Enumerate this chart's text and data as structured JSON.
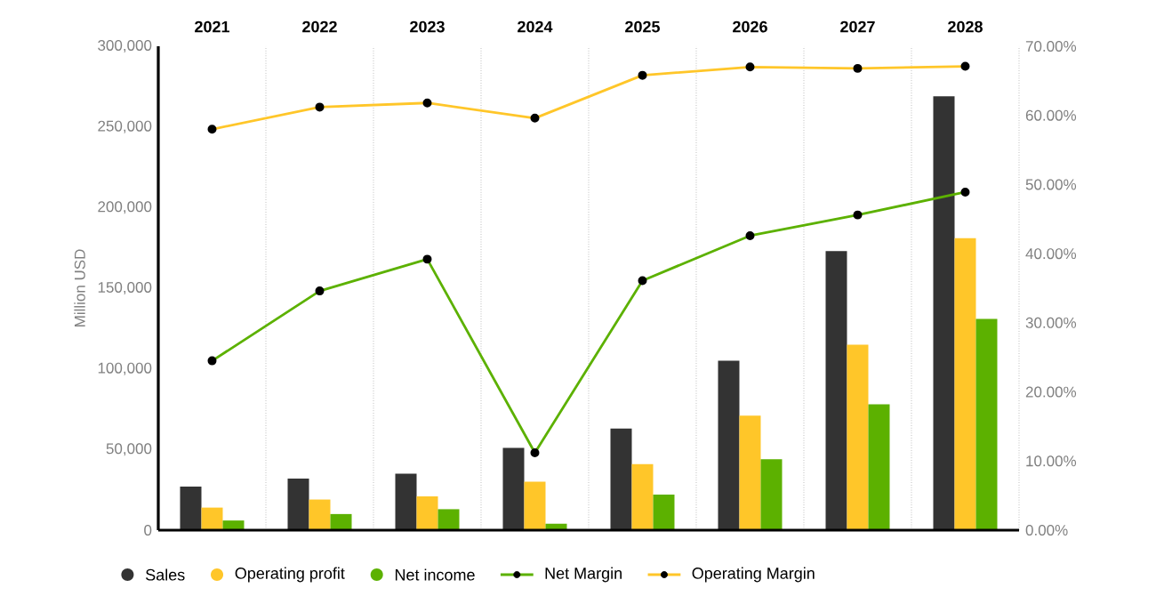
{
  "chart_data": {
    "type": "bar",
    "categories": [
      "2021",
      "2022",
      "2023",
      "2024",
      "2025",
      "2026",
      "2027",
      "2028"
    ],
    "ylabel": "Million USD",
    "ylim": [
      0,
      300000
    ],
    "yticks": [
      {
        "value": 0,
        "label": "0"
      },
      {
        "value": 50000,
        "label": "50,000"
      },
      {
        "value": 100000,
        "label": "100,000"
      },
      {
        "value": 150000,
        "label": "150,000"
      },
      {
        "value": 200000,
        "label": "200,000"
      },
      {
        "value": 250000,
        "label": "250,000"
      },
      {
        "value": 300000,
        "label": "300,000"
      }
    ],
    "y2lim": [
      0,
      70
    ],
    "y2ticks": [
      {
        "value": 0,
        "label": "0.00%"
      },
      {
        "value": 10,
        "label": "10.00%"
      },
      {
        "value": 20,
        "label": "20.00%"
      },
      {
        "value": 30,
        "label": "30.00%"
      },
      {
        "value": 40,
        "label": "40.00%"
      },
      {
        "value": 50,
        "label": "50.00%"
      },
      {
        "value": 60,
        "label": "60.00%"
      },
      {
        "value": 70,
        "label": "70.00%"
      }
    ],
    "grid": "x",
    "legend": "bottom",
    "marker": "circle",
    "line_style": "solid",
    "series": [
      {
        "name": "Sales",
        "color": "#333333",
        "values": [
          27000,
          32000,
          35000,
          51000,
          63000,
          105000,
          173000,
          269000
        ]
      },
      {
        "name": "Operating profit",
        "color": "#ffc629",
        "values": [
          14000,
          19000,
          21000,
          30000,
          41000,
          71000,
          115000,
          181000
        ]
      },
      {
        "name": "Net income",
        "color": "#5cb100",
        "values": [
          6000,
          10000,
          13000,
          4000,
          22000,
          44000,
          78000,
          131000
        ]
      },
      {
        "name": "Net Margin",
        "type": "line",
        "axis": "y2",
        "color": "#5cb100",
        "values": [
          24.5,
          34.6,
          39.2,
          11.2,
          36.1,
          42.6,
          45.6,
          48.9
        ]
      },
      {
        "name": "Operating Margin",
        "type": "line",
        "axis": "y2",
        "color": "#ffc629",
        "values": [
          58.0,
          61.2,
          61.8,
          59.6,
          65.8,
          67.0,
          66.8,
          67.1
        ]
      }
    ]
  }
}
